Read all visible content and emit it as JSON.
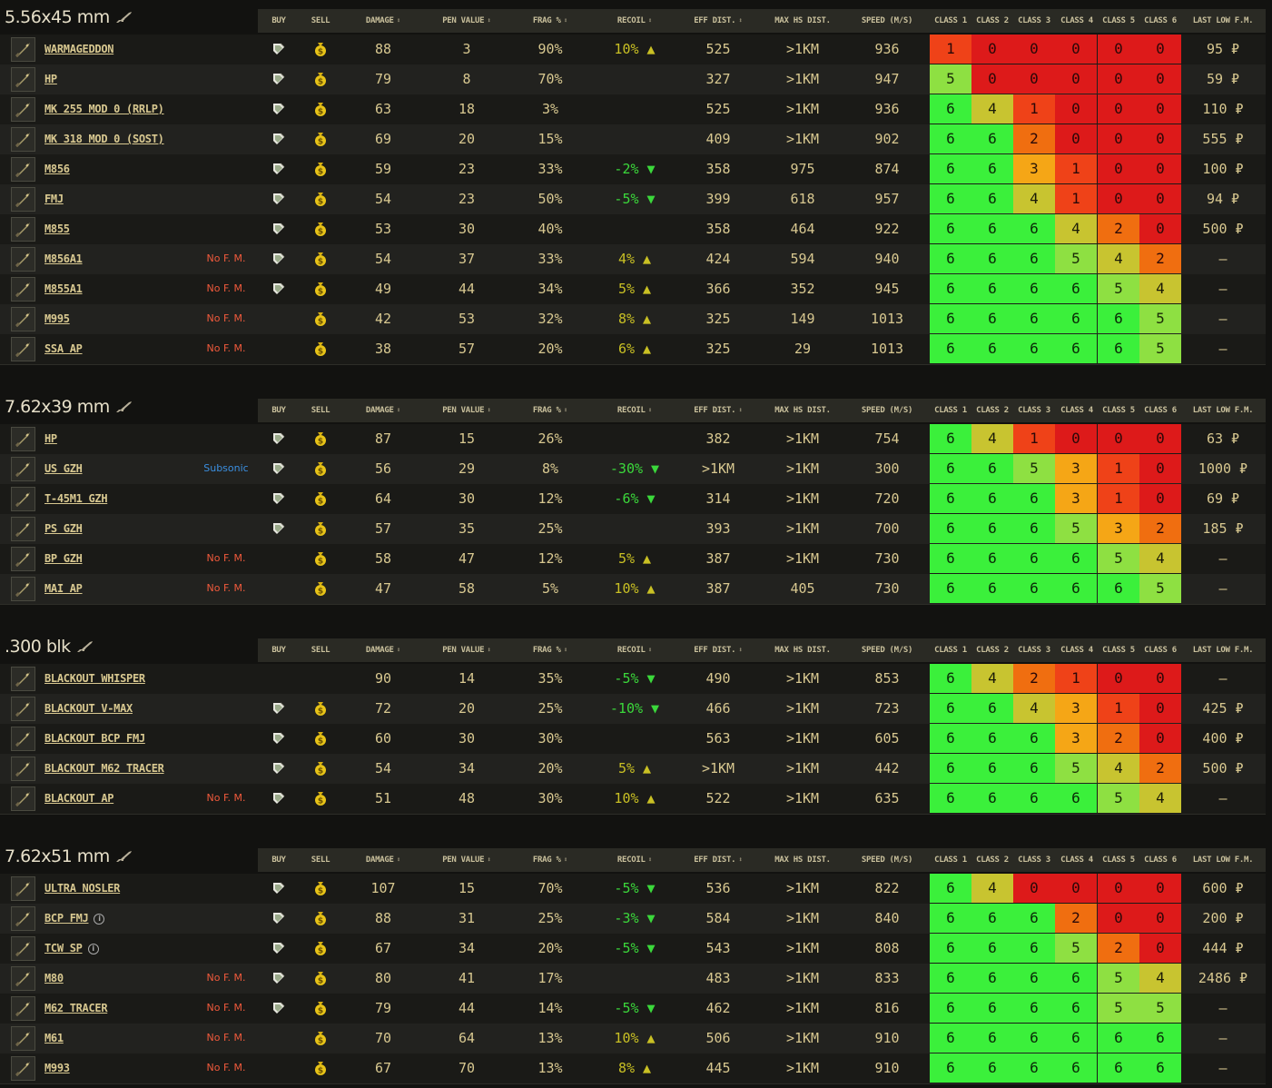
{
  "headers": {
    "buy": "BUY",
    "sell": "SELL",
    "damage": "DAMAGE",
    "pen": "PEN VALUE",
    "frag": "FRAG %",
    "recoil": "RECOIL",
    "eff": "EFF DIST.",
    "maxhs": "MAX HS DIST.",
    "speed": "SPEED (M/S)",
    "c1": "CLASS 1",
    "c2": "CLASS 2",
    "c3": "CLASS 3",
    "c4": "CLASS 4",
    "c5": "CLASS 5",
    "c6": "CLASS 6",
    "last": "LAST LOW F.M."
  },
  "sort_glyph": "⬍",
  "sections": [
    {
      "caliber": "5.56x45 mm",
      "rows": [
        {
          "name": "WARMAGEDDON",
          "tag": "",
          "buy": true,
          "sell": true,
          "damage": "88",
          "pen": "3",
          "frag": "90%",
          "recoil": "10% ▲",
          "recoil_dir": "up",
          "eff": "525",
          "maxhs": ">1KM",
          "speed": "936",
          "classes": [
            1,
            0,
            0,
            0,
            0,
            0
          ],
          "last": "95 ₽"
        },
        {
          "name": "HP",
          "tag": "",
          "buy": true,
          "sell": true,
          "damage": "79",
          "pen": "8",
          "frag": "70%",
          "recoil": "",
          "recoil_dir": "",
          "eff": "327",
          "maxhs": ">1KM",
          "speed": "947",
          "classes": [
            5,
            0,
            0,
            0,
            0,
            0
          ],
          "last": "59 ₽"
        },
        {
          "name": "MK 255 MOD 0 (RRLP)",
          "tag": "",
          "buy": true,
          "sell": true,
          "damage": "63",
          "pen": "18",
          "frag": "3%",
          "recoil": "",
          "recoil_dir": "",
          "eff": "525",
          "maxhs": ">1KM",
          "speed": "936",
          "classes": [
            6,
            4,
            1,
            0,
            0,
            0
          ],
          "last": "110 ₽"
        },
        {
          "name": "MK 318 MOD 0 (SOST)",
          "tag": "",
          "buy": true,
          "sell": true,
          "damage": "69",
          "pen": "20",
          "frag": "15%",
          "recoil": "",
          "recoil_dir": "",
          "eff": "409",
          "maxhs": ">1KM",
          "speed": "902",
          "classes": [
            6,
            6,
            2,
            0,
            0,
            0
          ],
          "last": "555 ₽"
        },
        {
          "name": "M856",
          "tag": "",
          "buy": true,
          "sell": true,
          "damage": "59",
          "pen": "23",
          "frag": "33%",
          "recoil": "-2% ▼",
          "recoil_dir": "down",
          "eff": "358",
          "maxhs": "975",
          "speed": "874",
          "classes": [
            6,
            6,
            3,
            1,
            0,
            0
          ],
          "last": "100 ₽"
        },
        {
          "name": "FMJ",
          "tag": "",
          "buy": true,
          "sell": true,
          "damage": "54",
          "pen": "23",
          "frag": "50%",
          "recoil": "-5% ▼",
          "recoil_dir": "down",
          "eff": "399",
          "maxhs": "618",
          "speed": "957",
          "classes": [
            6,
            6,
            4,
            1,
            0,
            0
          ],
          "last": "94 ₽"
        },
        {
          "name": "M855",
          "tag": "",
          "buy": true,
          "sell": true,
          "damage": "53",
          "pen": "30",
          "frag": "40%",
          "recoil": "",
          "recoil_dir": "",
          "eff": "358",
          "maxhs": "464",
          "speed": "922",
          "classes": [
            6,
            6,
            6,
            4,
            2,
            0
          ],
          "last": "500 ₽"
        },
        {
          "name": "M856A1",
          "tag": "No F. M.",
          "buy": true,
          "sell": true,
          "damage": "54",
          "pen": "37",
          "frag": "33%",
          "recoil": "4% ▲",
          "recoil_dir": "up",
          "eff": "424",
          "maxhs": "594",
          "speed": "940",
          "classes": [
            6,
            6,
            6,
            5,
            4,
            2
          ],
          "last": "–"
        },
        {
          "name": "M855A1",
          "tag": "No F. M.",
          "buy": true,
          "sell": true,
          "damage": "49",
          "pen": "44",
          "frag": "34%",
          "recoil": "5% ▲",
          "recoil_dir": "up",
          "eff": "366",
          "maxhs": "352",
          "speed": "945",
          "classes": [
            6,
            6,
            6,
            6,
            5,
            4
          ],
          "last": "–"
        },
        {
          "name": "M995",
          "tag": "No F. M.",
          "buy": false,
          "sell": true,
          "damage": "42",
          "pen": "53",
          "frag": "32%",
          "recoil": "8% ▲",
          "recoil_dir": "up",
          "eff": "325",
          "maxhs": "149",
          "speed": "1013",
          "classes": [
            6,
            6,
            6,
            6,
            6,
            5
          ],
          "last": "–"
        },
        {
          "name": "SSA AP",
          "tag": "No F. M.",
          "buy": false,
          "sell": true,
          "damage": "38",
          "pen": "57",
          "frag": "20%",
          "recoil": "6% ▲",
          "recoil_dir": "up",
          "eff": "325",
          "maxhs": "29",
          "speed": "1013",
          "classes": [
            6,
            6,
            6,
            6,
            6,
            5
          ],
          "last": "–"
        }
      ]
    },
    {
      "caliber": "7.62x39 mm",
      "rows": [
        {
          "name": "HP",
          "tag": "",
          "buy": true,
          "sell": true,
          "damage": "87",
          "pen": "15",
          "frag": "26%",
          "recoil": "",
          "recoil_dir": "",
          "eff": "382",
          "maxhs": ">1KM",
          "speed": "754",
          "classes": [
            6,
            4,
            1,
            0,
            0,
            0
          ],
          "last": "63 ₽"
        },
        {
          "name": "US GZH",
          "tag": "Subsonic",
          "buy": true,
          "sell": true,
          "damage": "56",
          "pen": "29",
          "frag": "8%",
          "recoil": "-30% ▼",
          "recoil_dir": "down",
          "eff": ">1KM",
          "maxhs": ">1KM",
          "speed": "300",
          "classes": [
            6,
            6,
            5,
            3,
            1,
            0
          ],
          "last": "1000 ₽"
        },
        {
          "name": "T-45M1 GZH",
          "tag": "",
          "buy": true,
          "sell": true,
          "damage": "64",
          "pen": "30",
          "frag": "12%",
          "recoil": "-6% ▼",
          "recoil_dir": "down",
          "eff": "314",
          "maxhs": ">1KM",
          "speed": "720",
          "classes": [
            6,
            6,
            6,
            3,
            1,
            0
          ],
          "last": "69 ₽"
        },
        {
          "name": "PS GZH",
          "tag": "",
          "buy": true,
          "sell": true,
          "damage": "57",
          "pen": "35",
          "frag": "25%",
          "recoil": "",
          "recoil_dir": "",
          "eff": "393",
          "maxhs": ">1KM",
          "speed": "700",
          "classes": [
            6,
            6,
            6,
            5,
            3,
            2
          ],
          "last": "185 ₽"
        },
        {
          "name": "BP GZH",
          "tag": "No F. M.",
          "buy": false,
          "sell": true,
          "damage": "58",
          "pen": "47",
          "frag": "12%",
          "recoil": "5% ▲",
          "recoil_dir": "up",
          "eff": "387",
          "maxhs": ">1KM",
          "speed": "730",
          "classes": [
            6,
            6,
            6,
            6,
            5,
            4
          ],
          "last": "–"
        },
        {
          "name": "MAI AP",
          "tag": "No F. M.",
          "buy": false,
          "sell": true,
          "damage": "47",
          "pen": "58",
          "frag": "5%",
          "recoil": "10% ▲",
          "recoil_dir": "up",
          "eff": "387",
          "maxhs": "405",
          "speed": "730",
          "classes": [
            6,
            6,
            6,
            6,
            6,
            5
          ],
          "last": "–"
        }
      ]
    },
    {
      "caliber": ".300 blk",
      "rows": [
        {
          "name": "BLACKOUT WHISPER",
          "tag": "",
          "buy": false,
          "sell": false,
          "damage": "90",
          "pen": "14",
          "frag": "35%",
          "recoil": "-5% ▼",
          "recoil_dir": "down",
          "eff": "490",
          "maxhs": ">1KM",
          "speed": "853",
          "classes": [
            6,
            4,
            2,
            1,
            0,
            0
          ],
          "last": "–"
        },
        {
          "name": "BLACKOUT V-MAX",
          "tag": "",
          "buy": true,
          "sell": true,
          "damage": "72",
          "pen": "20",
          "frag": "25%",
          "recoil": "-10% ▼",
          "recoil_dir": "down",
          "eff": "466",
          "maxhs": ">1KM",
          "speed": "723",
          "classes": [
            6,
            6,
            4,
            3,
            1,
            0
          ],
          "last": "425 ₽"
        },
        {
          "name": "BLACKOUT BCP FMJ",
          "tag": "",
          "buy": true,
          "sell": true,
          "damage": "60",
          "pen": "30",
          "frag": "30%",
          "recoil": "",
          "recoil_dir": "",
          "eff": "563",
          "maxhs": ">1KM",
          "speed": "605",
          "classes": [
            6,
            6,
            6,
            3,
            2,
            0
          ],
          "last": "400 ₽"
        },
        {
          "name": "BLACKOUT M62 TRACER",
          "tag": "",
          "buy": true,
          "sell": true,
          "damage": "54",
          "pen": "34",
          "frag": "20%",
          "recoil": "5% ▲",
          "recoil_dir": "up",
          "eff": ">1KM",
          "maxhs": ">1KM",
          "speed": "442",
          "classes": [
            6,
            6,
            6,
            5,
            4,
            2
          ],
          "last": "500 ₽"
        },
        {
          "name": "BLACKOUT AP",
          "tag": "No F. M.",
          "buy": true,
          "sell": true,
          "damage": "51",
          "pen": "48",
          "frag": "30%",
          "recoil": "10% ▲",
          "recoil_dir": "up",
          "eff": "522",
          "maxhs": ">1KM",
          "speed": "635",
          "classes": [
            6,
            6,
            6,
            6,
            5,
            4
          ],
          "last": "–"
        }
      ]
    },
    {
      "caliber": "7.62x51 mm",
      "rows": [
        {
          "name": "ULTRA NOSLER",
          "tag": "",
          "buy": true,
          "sell": true,
          "damage": "107",
          "pen": "15",
          "frag": "70%",
          "recoil": "-5% ▼",
          "recoil_dir": "down",
          "eff": "536",
          "maxhs": ">1KM",
          "speed": "822",
          "classes": [
            6,
            4,
            0,
            0,
            0,
            0
          ],
          "last": "600 ₽"
        },
        {
          "name": "BCP FMJ",
          "tag": "",
          "info": true,
          "buy": true,
          "sell": true,
          "damage": "88",
          "pen": "31",
          "frag": "25%",
          "recoil": "-3% ▼",
          "recoil_dir": "down",
          "eff": "584",
          "maxhs": ">1KM",
          "speed": "840",
          "classes": [
            6,
            6,
            6,
            2,
            0,
            0
          ],
          "last": "200 ₽"
        },
        {
          "name": "TCW SP",
          "tag": "",
          "info": true,
          "buy": true,
          "sell": true,
          "damage": "67",
          "pen": "34",
          "frag": "20%",
          "recoil": "-5% ▼",
          "recoil_dir": "down",
          "eff": "543",
          "maxhs": ">1KM",
          "speed": "808",
          "classes": [
            6,
            6,
            6,
            5,
            2,
            0
          ],
          "last": "444 ₽"
        },
        {
          "name": "M80",
          "tag": "No F. M.",
          "buy": true,
          "sell": true,
          "damage": "80",
          "pen": "41",
          "frag": "17%",
          "recoil": "",
          "recoil_dir": "",
          "eff": "483",
          "maxhs": ">1KM",
          "speed": "833",
          "classes": [
            6,
            6,
            6,
            6,
            5,
            4
          ],
          "last": "2486 ₽"
        },
        {
          "name": "M62 TRACER",
          "tag": "No F. M.",
          "buy": true,
          "sell": true,
          "damage": "79",
          "pen": "44",
          "frag": "14%",
          "recoil": "-5% ▼",
          "recoil_dir": "down",
          "eff": "462",
          "maxhs": ">1KM",
          "speed": "816",
          "classes": [
            6,
            6,
            6,
            6,
            5,
            5
          ],
          "last": "–"
        },
        {
          "name": "M61",
          "tag": "No F. M.",
          "buy": false,
          "sell": true,
          "damage": "70",
          "pen": "64",
          "frag": "13%",
          "recoil": "10% ▲",
          "recoil_dir": "up",
          "eff": "506",
          "maxhs": ">1KM",
          "speed": "910",
          "classes": [
            6,
            6,
            6,
            6,
            6,
            6
          ],
          "last": "–"
        },
        {
          "name": "M993",
          "tag": "No F. M.",
          "buy": false,
          "sell": true,
          "damage": "67",
          "pen": "70",
          "frag": "13%",
          "recoil": "8% ▲",
          "recoil_dir": "up",
          "eff": "445",
          "maxhs": ">1KM",
          "speed": "910",
          "classes": [
            6,
            6,
            6,
            6,
            6,
            6
          ],
          "last": "–"
        }
      ]
    }
  ]
}
